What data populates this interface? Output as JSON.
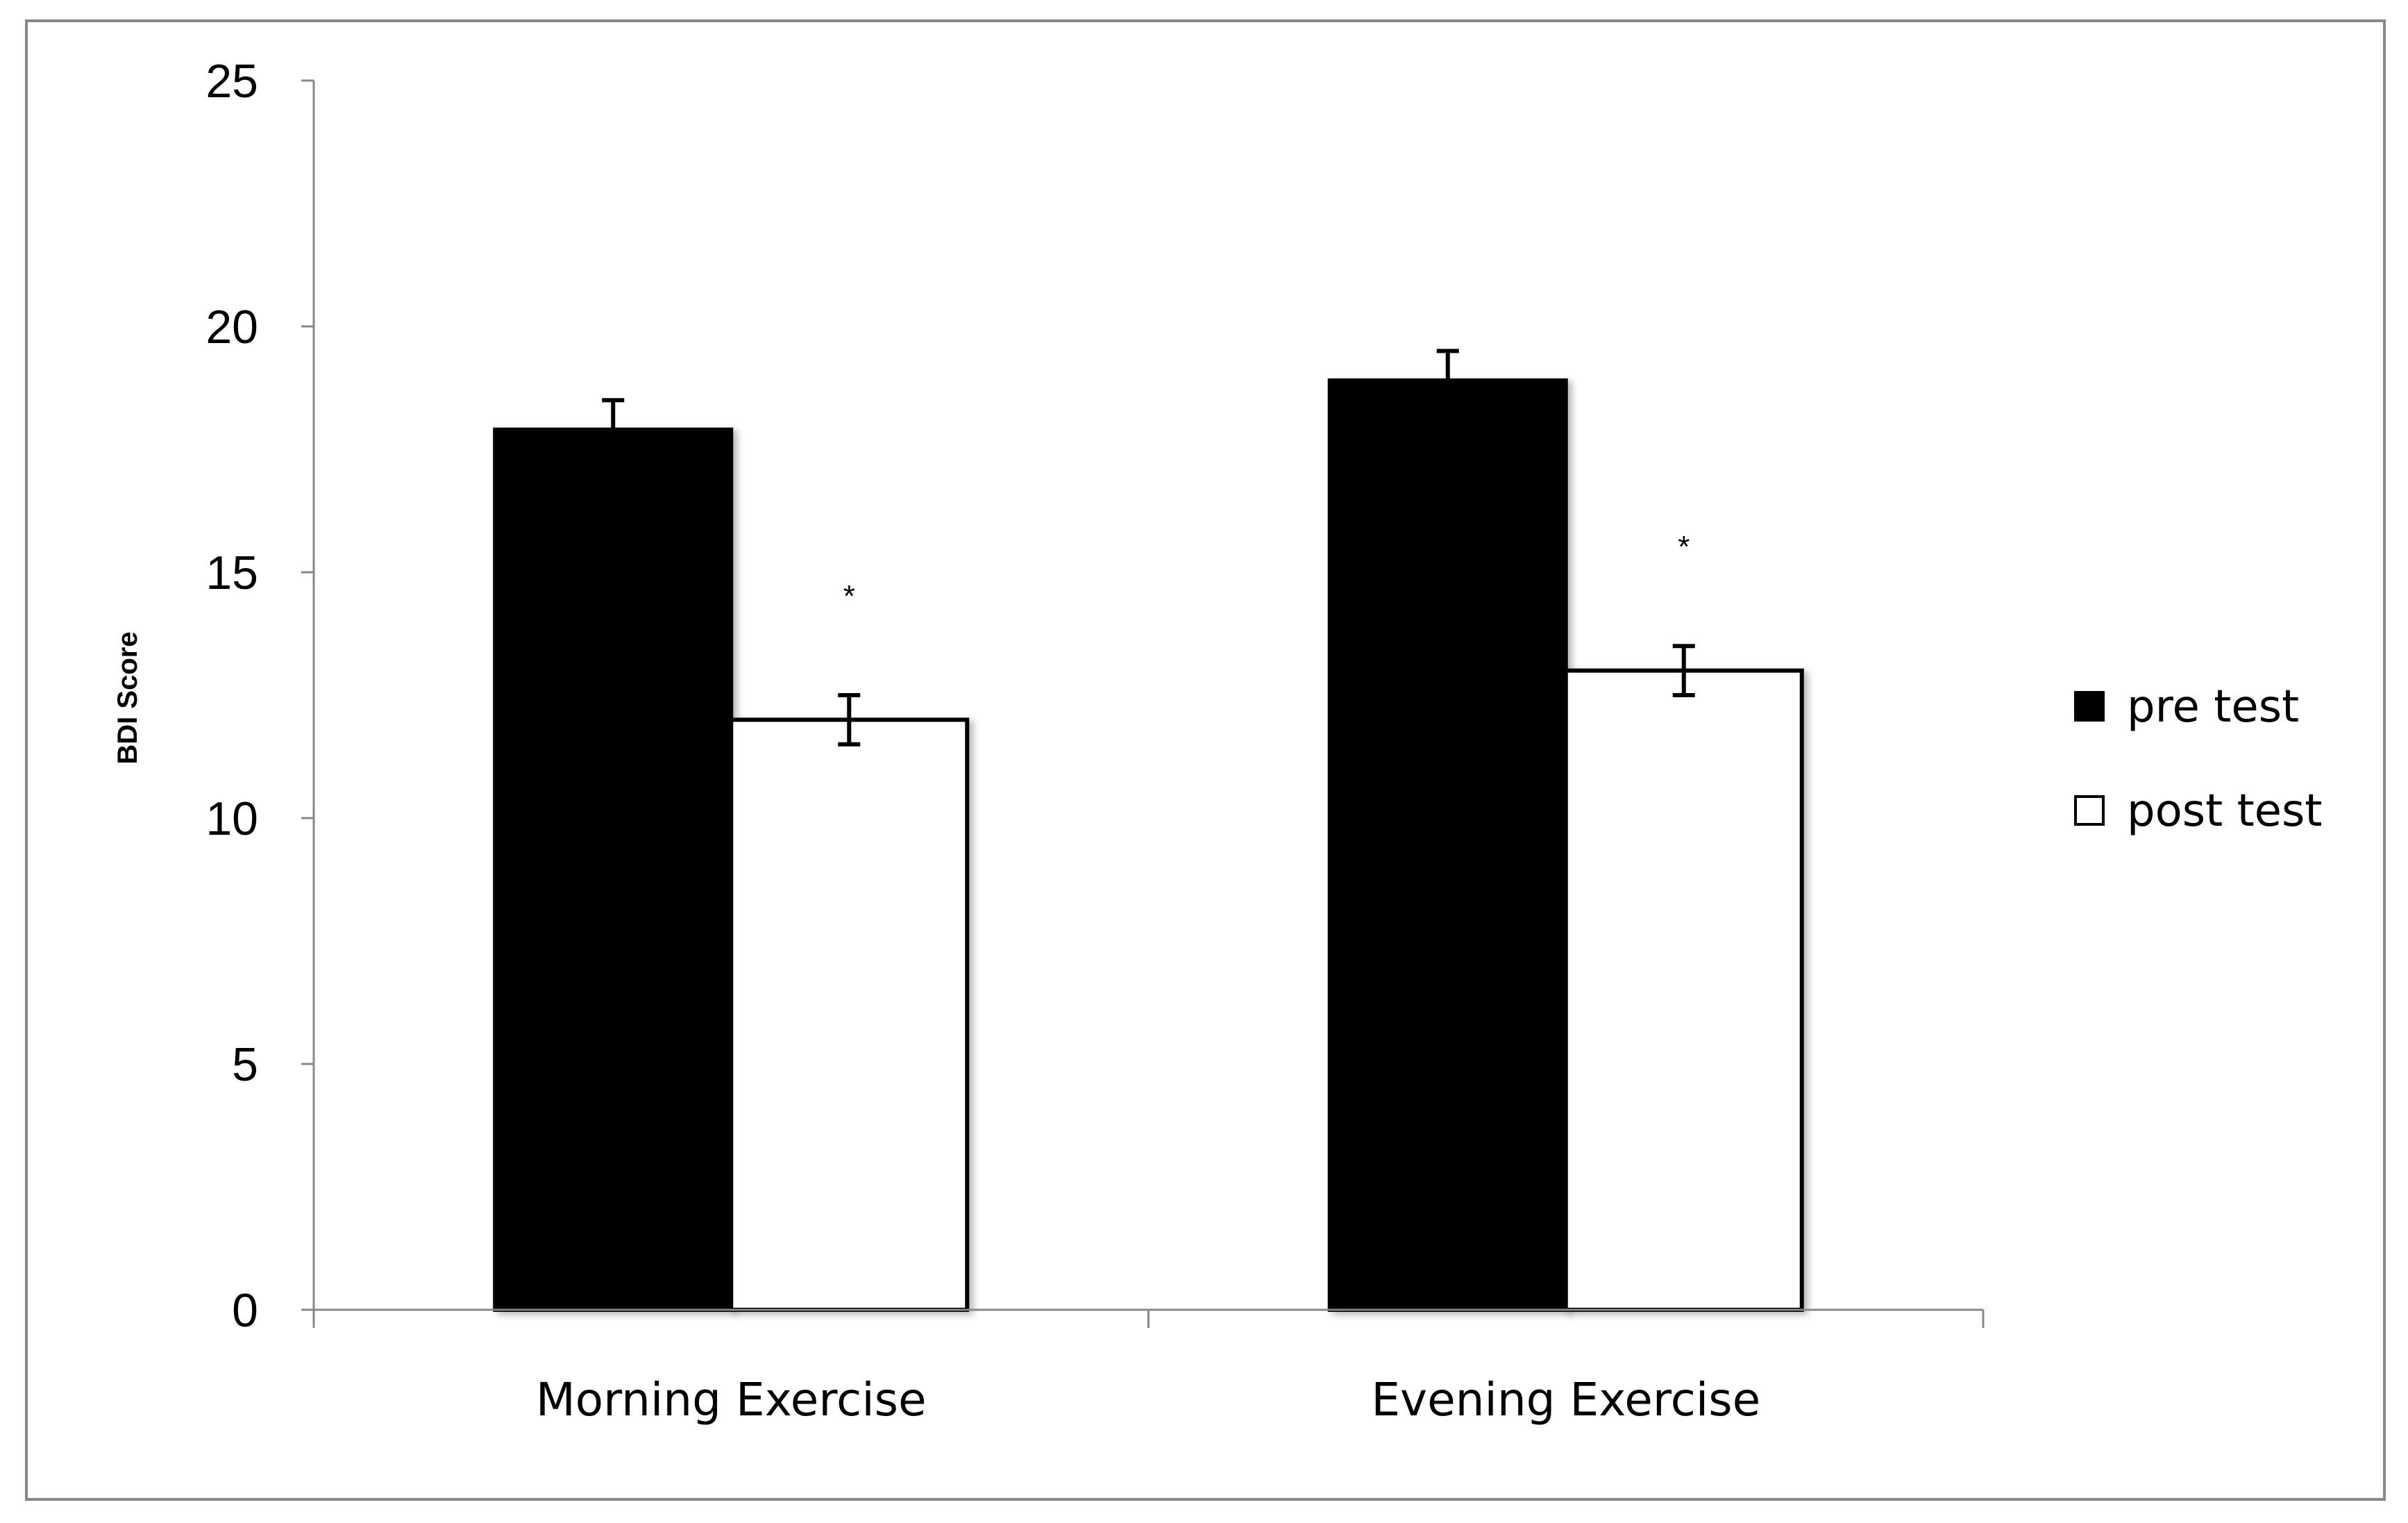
{
  "chart_data": {
    "type": "bar",
    "categories": [
      "Morning Exercise",
      "Evening Exercise"
    ],
    "series": [
      {
        "name": "pre test",
        "values": [
          17.9,
          18.9
        ],
        "errors": [
          0.6,
          0.6
        ],
        "color": "#000000"
      },
      {
        "name": "post test",
        "values": [
          12.0,
          13.0
        ],
        "errors": [
          0.5,
          0.5
        ],
        "color": "#ffffff"
      }
    ],
    "annotations": [
      "*",
      "*"
    ],
    "title": "",
    "xlabel": "",
    "ylabel": "BDI Score",
    "ylim": [
      0,
      25
    ],
    "yticks": [
      "0",
      "5",
      "10",
      "15",
      "20",
      "25"
    ],
    "grid": false,
    "legend_position": "right"
  }
}
